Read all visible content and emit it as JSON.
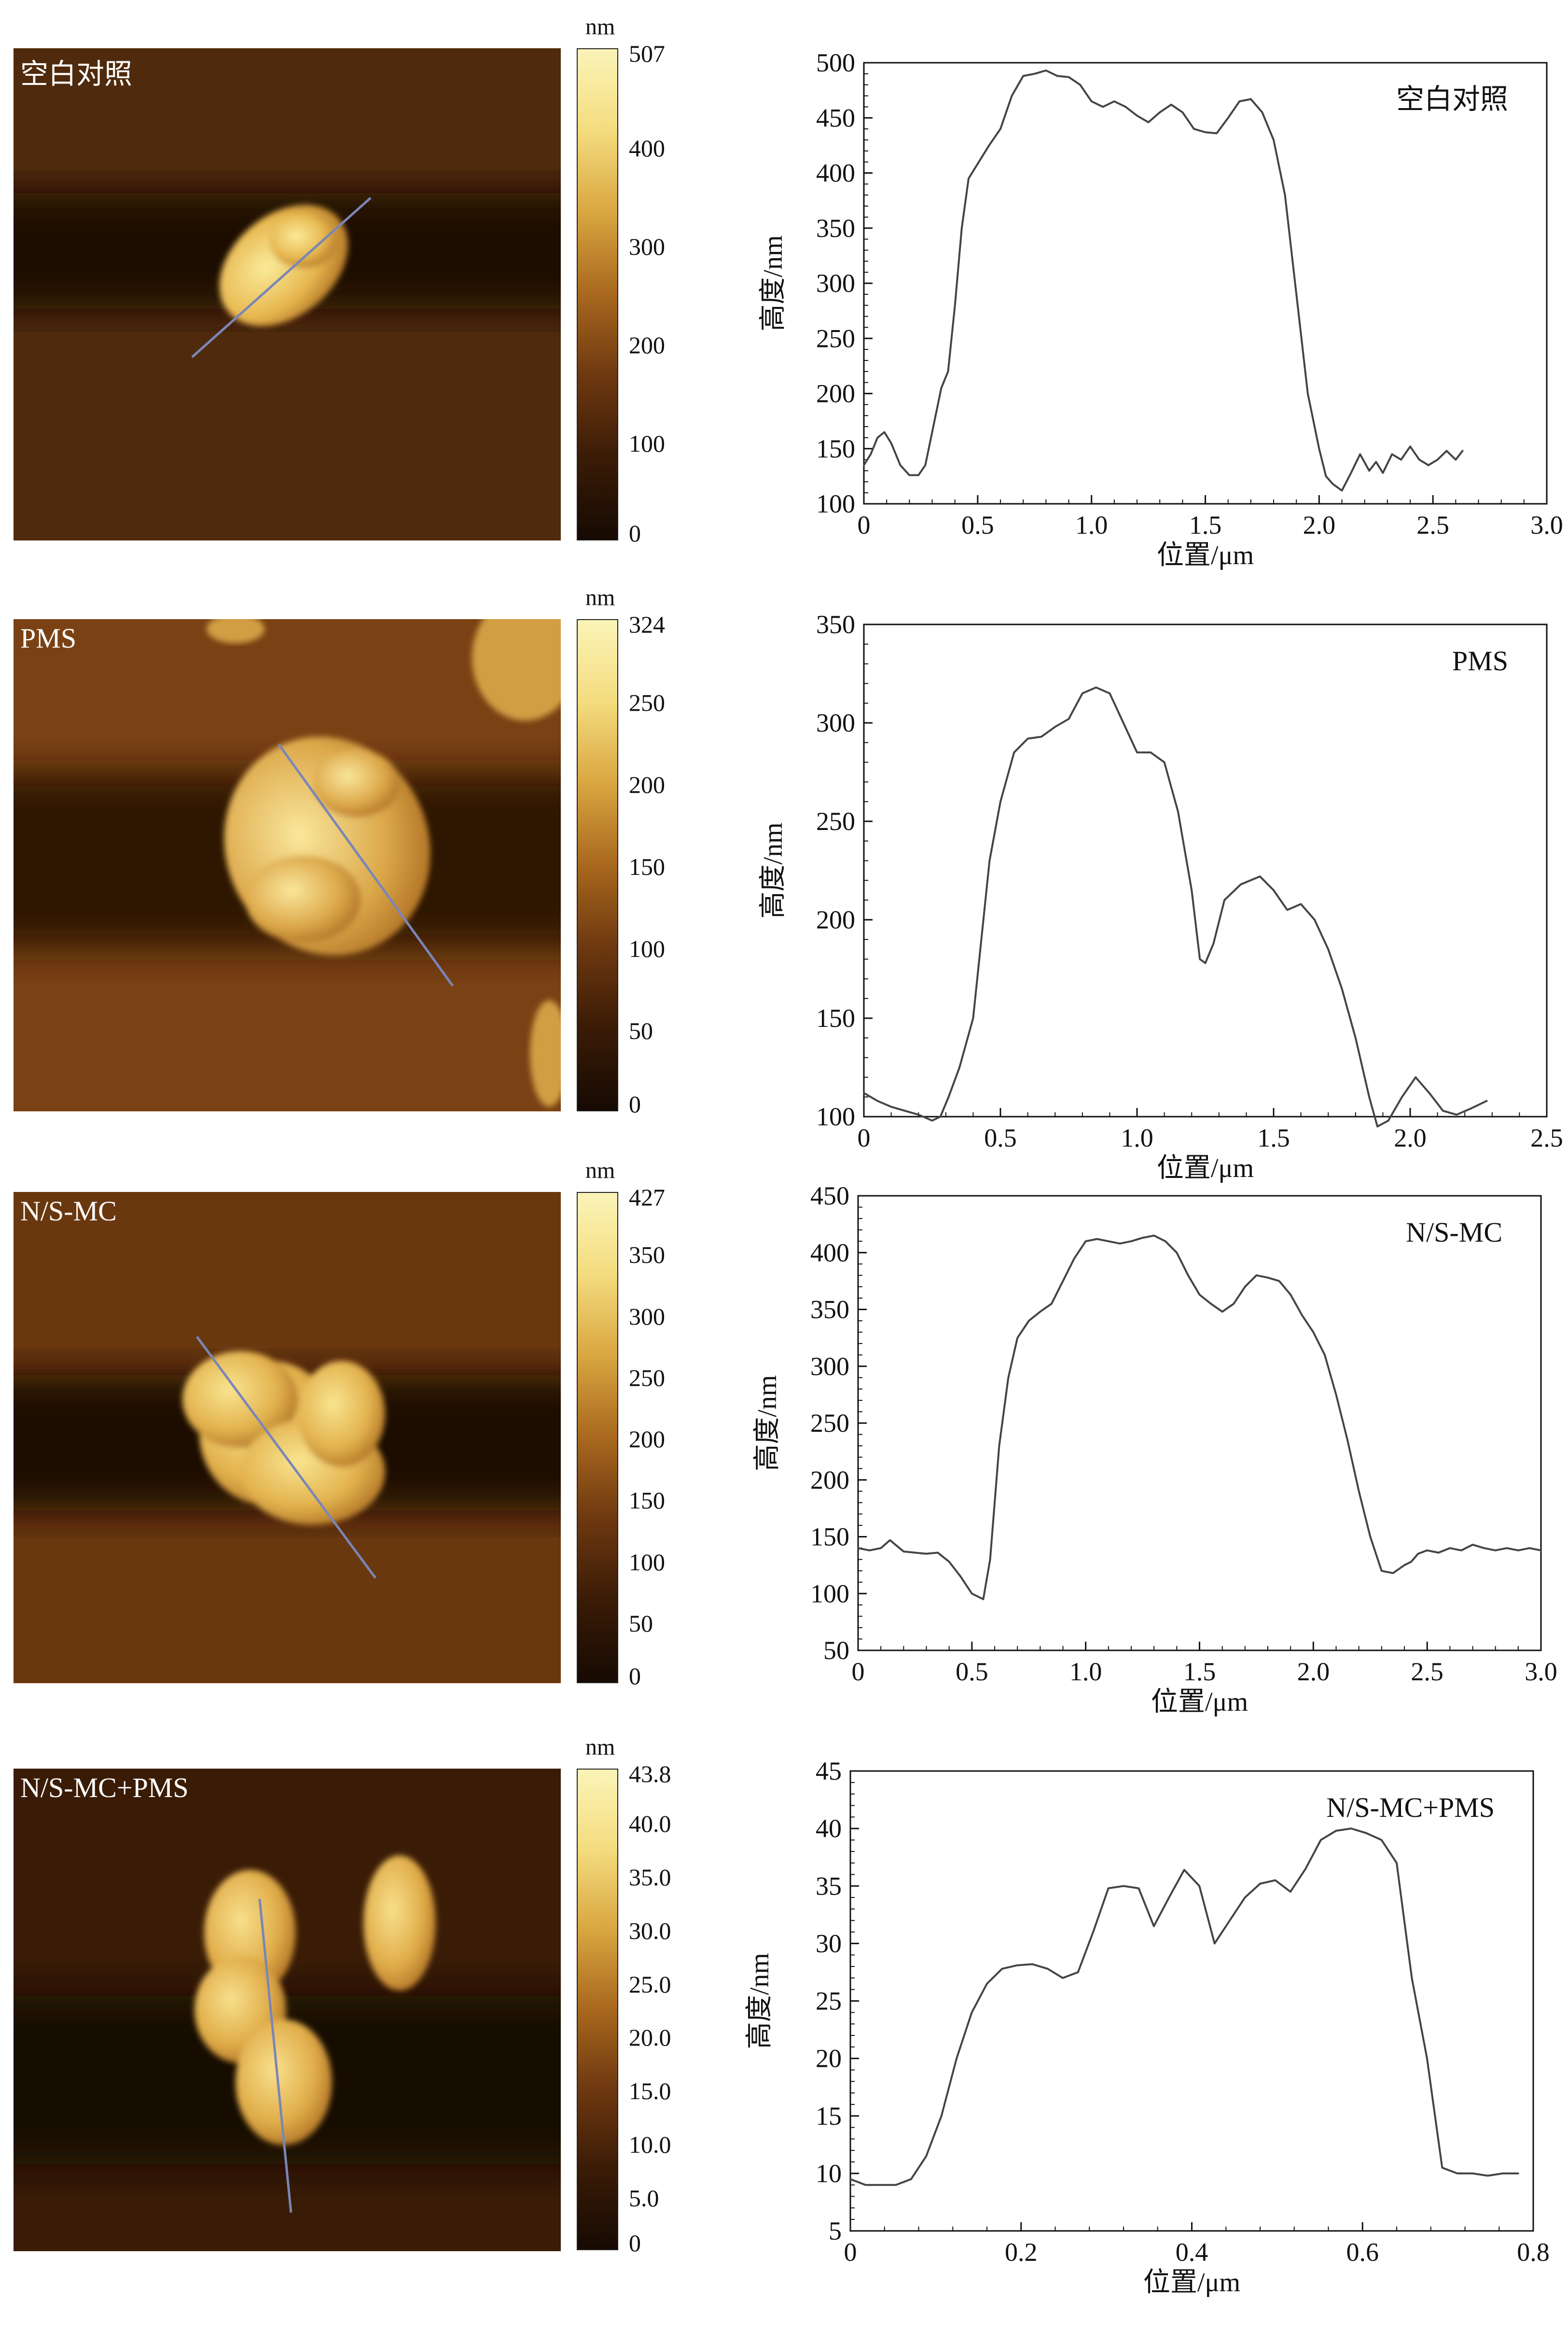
{
  "colorbar": {
    "unit": "nm",
    "gradient": [
      "#160a03",
      "#3a1b06",
      "#6e3810",
      "#a8681e",
      "#d9a640",
      "#f4dc7e",
      "#fbf4b8"
    ]
  },
  "panels": [
    {
      "label": "空白对照",
      "colorbar_ticks": [
        "507",
        "400",
        "300",
        "200",
        "100",
        "0"
      ],
      "afm_colors": {
        "background": "#4f2a0c",
        "band": "#1e0d03",
        "particle": "#e6b64e",
        "highlight": "#fbeb9a"
      }
    },
    {
      "label": "PMS",
      "colorbar_ticks": [
        "324",
        "250",
        "200",
        "150",
        "100",
        "50",
        "0"
      ],
      "afm_colors": {
        "background": "#7a4214",
        "band": "#2e1505",
        "particle": "#dca84a",
        "highlight": "#fae79c"
      }
    },
    {
      "label": "N/S-MC",
      "colorbar_ticks": [
        "427",
        "350",
        "300",
        "250",
        "200",
        "150",
        "100",
        "50",
        "0"
      ],
      "afm_colors": {
        "background": "#6a380f",
        "band": "#1c0c03",
        "particle": "#e2b24e",
        "highlight": "#f9e590"
      }
    },
    {
      "label": "N/S-MC+PMS",
      "colorbar_ticks": [
        "43.8",
        "40.0",
        "35.0",
        "30.0",
        "25.0",
        "20.0",
        "15.0",
        "10.0",
        "5.0",
        "0"
      ],
      "afm_colors": {
        "background": "#3a1c06",
        "band": "#170a02",
        "particle": "#e0ad4a",
        "highlight": "#f8e08c"
      }
    }
  ],
  "chart_data": [
    {
      "type": "line",
      "annotation": "空白对照",
      "xlabel": "位置/μm",
      "ylabel": "高度/nm",
      "xlim": [
        0,
        3.0
      ],
      "ylim": [
        100,
        500
      ],
      "xticks": [
        "0",
        "0.5",
        "1.0",
        "1.5",
        "2.0",
        "2.5",
        "3.0"
      ],
      "yticks": [
        "100",
        "150",
        "200",
        "250",
        "300",
        "350",
        "400",
        "450",
        "500"
      ],
      "series": [
        {
          "x": [
            0,
            0.03,
            0.06,
            0.09,
            0.12,
            0.16,
            0.2,
            0.24,
            0.27,
            0.3,
            0.34,
            0.37,
            0.4,
            0.43,
            0.46,
            0.49,
            0.52,
            0.55,
            0.6,
            0.65,
            0.7,
            0.75,
            0.8,
            0.85,
            0.9,
            0.95,
            1.0,
            1.05,
            1.1,
            1.15,
            1.2,
            1.25,
            1.3,
            1.35,
            1.4,
            1.45,
            1.5,
            1.55,
            1.6,
            1.65,
            1.7,
            1.75,
            1.8,
            1.85,
            1.9,
            1.95,
            2.0,
            2.03,
            2.06,
            2.1,
            2.14,
            2.18,
            2.22,
            2.25,
            2.28,
            2.32,
            2.36,
            2.4,
            2.44,
            2.48,
            2.52,
            2.56,
            2.6,
            2.63
          ],
          "y": [
            135,
            145,
            160,
            165,
            155,
            135,
            126,
            126,
            135,
            165,
            205,
            220,
            280,
            350,
            395,
            405,
            415,
            425,
            440,
            470,
            488,
            490,
            493,
            488,
            487,
            480,
            465,
            460,
            465,
            460,
            452,
            446,
            455,
            462,
            455,
            440,
            437,
            436,
            450,
            465,
            467,
            455,
            430,
            380,
            290,
            200,
            150,
            125,
            118,
            112,
            128,
            145,
            130,
            138,
            128,
            145,
            140,
            152,
            140,
            135,
            140,
            148,
            140,
            148
          ]
        }
      ]
    },
    {
      "type": "line",
      "annotation": "PMS",
      "xlabel": "位置/μm",
      "ylabel": "高度/nm",
      "xlim": [
        0,
        2.5
      ],
      "ylim": [
        100,
        350
      ],
      "xticks": [
        "0",
        "0.5",
        "1.0",
        "1.5",
        "2.0",
        "2.5"
      ],
      "yticks": [
        "100",
        "150",
        "200",
        "250",
        "300",
        "350"
      ],
      "series": [
        {
          "x": [
            0,
            0.05,
            0.1,
            0.15,
            0.2,
            0.25,
            0.28,
            0.31,
            0.35,
            0.4,
            0.43,
            0.46,
            0.5,
            0.55,
            0.6,
            0.65,
            0.7,
            0.75,
            0.8,
            0.85,
            0.9,
            0.95,
            1.0,
            1.05,
            1.1,
            1.15,
            1.2,
            1.23,
            1.25,
            1.28,
            1.32,
            1.38,
            1.45,
            1.5,
            1.55,
            1.6,
            1.65,
            1.7,
            1.75,
            1.8,
            1.85,
            1.88,
            1.92,
            1.97,
            2.02,
            2.07,
            2.12,
            2.17,
            2.22,
            2.28
          ],
          "y": [
            112,
            108,
            105,
            103,
            101,
            98,
            100,
            110,
            125,
            150,
            190,
            230,
            260,
            285,
            292,
            293,
            298,
            302,
            315,
            318,
            315,
            300,
            285,
            285,
            280,
            255,
            215,
            180,
            178,
            188,
            210,
            218,
            222,
            215,
            205,
            208,
            200,
            185,
            165,
            140,
            110,
            95,
            98,
            110,
            120,
            112,
            103,
            101,
            104,
            108
          ]
        }
      ]
    },
    {
      "type": "line",
      "annotation": "N/S-MC",
      "xlabel": "位置/μm",
      "ylabel": "高度/nm",
      "xlim": [
        0,
        3.0
      ],
      "ylim": [
        50,
        450
      ],
      "xticks": [
        "0",
        "0.5",
        "1.0",
        "1.5",
        "2.0",
        "2.5",
        "3.0"
      ],
      "yticks": [
        "50",
        "100",
        "150",
        "200",
        "250",
        "300",
        "350",
        "400",
        "450"
      ],
      "series": [
        {
          "x": [
            0,
            0.05,
            0.1,
            0.14,
            0.2,
            0.3,
            0.35,
            0.4,
            0.45,
            0.5,
            0.55,
            0.58,
            0.62,
            0.66,
            0.7,
            0.75,
            0.8,
            0.85,
            0.9,
            0.95,
            1.0,
            1.05,
            1.1,
            1.15,
            1.2,
            1.25,
            1.3,
            1.35,
            1.4,
            1.45,
            1.5,
            1.55,
            1.6,
            1.65,
            1.7,
            1.75,
            1.8,
            1.85,
            1.9,
            1.95,
            2.0,
            2.05,
            2.1,
            2.15,
            2.2,
            2.25,
            2.3,
            2.35,
            2.4,
            2.43,
            2.46,
            2.5,
            2.55,
            2.6,
            2.65,
            2.7,
            2.75,
            2.8,
            2.85,
            2.9,
            2.95,
            3.0
          ],
          "y": [
            140,
            138,
            140,
            147,
            137,
            135,
            136,
            128,
            115,
            100,
            95,
            130,
            230,
            290,
            325,
            340,
            348,
            355,
            375,
            395,
            410,
            412,
            410,
            408,
            410,
            413,
            415,
            410,
            400,
            380,
            363,
            355,
            348,
            355,
            370,
            380,
            378,
            375,
            363,
            345,
            330,
            310,
            275,
            235,
            190,
            150,
            120,
            118,
            125,
            128,
            135,
            138,
            136,
            140,
            138,
            143,
            140,
            138,
            140,
            138,
            140,
            138
          ]
        }
      ]
    },
    {
      "type": "line",
      "annotation": "N/S-MC+PMS",
      "xlabel": "位置/μm",
      "ylabel": "高度/nm",
      "xlim": [
        0,
        0.9
      ],
      "ylim": [
        5,
        45
      ],
      "xticks": [
        "0",
        "0.2",
        "0.4",
        "0.6",
        "0.8"
      ],
      "yticks": [
        "5",
        "10",
        "15",
        "20",
        "25",
        "30",
        "35",
        "40",
        "45"
      ],
      "series": [
        {
          "x": [
            0,
            0.02,
            0.04,
            0.06,
            0.08,
            0.1,
            0.12,
            0.14,
            0.16,
            0.18,
            0.2,
            0.22,
            0.24,
            0.26,
            0.28,
            0.3,
            0.32,
            0.34,
            0.36,
            0.38,
            0.4,
            0.42,
            0.44,
            0.46,
            0.48,
            0.5,
            0.52,
            0.54,
            0.56,
            0.58,
            0.6,
            0.62,
            0.64,
            0.66,
            0.68,
            0.7,
            0.72,
            0.74,
            0.76,
            0.78,
            0.8,
            0.82,
            0.84,
            0.86,
            0.88
          ],
          "y": [
            9.5,
            9,
            9,
            9,
            9.5,
            11.5,
            15,
            20,
            24,
            26.5,
            27.8,
            28.1,
            28.2,
            27.8,
            27,
            27.5,
            31,
            34.8,
            35,
            34.8,
            31.5,
            34,
            36.4,
            35,
            30,
            32,
            34,
            35.2,
            35.5,
            34.5,
            36.5,
            39,
            39.8,
            40,
            39.6,
            39,
            37,
            27,
            20,
            10.5,
            10,
            10,
            9.8,
            10,
            10
          ]
        }
      ]
    }
  ]
}
